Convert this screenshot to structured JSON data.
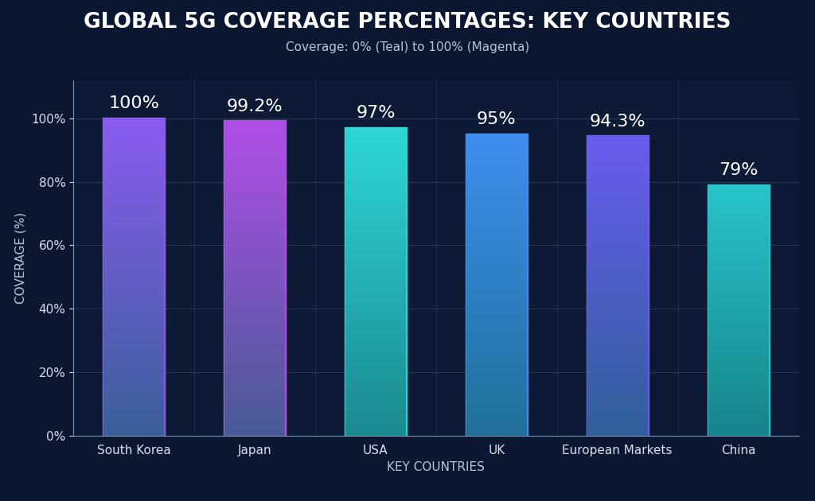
{
  "chart_data": {
    "type": "bar",
    "title": "GLOBAL 5G COVERAGE PERCENTAGES: KEY COUNTRIES",
    "subtitle": "Coverage: 0% (Teal) to 100% (Magenta)",
    "x_label": "KEY COUNTRIES",
    "y_label": "COVERAGE (%)",
    "categories": [
      "South Korea",
      "Japan",
      "USA",
      "UK",
      "European Markets",
      "China"
    ],
    "values": [
      100,
      99.2,
      97,
      95,
      94.3,
      79
    ],
    "value_labels": [
      "100%",
      "99.2%",
      "97%",
      "95%",
      "94.3%",
      "79%"
    ],
    "colors": [
      "#8a5cf0",
      "#b14fe8",
      "#2ed6d6",
      "#3f8ef0",
      "#6a5cf0",
      "#27c4c9"
    ],
    "ylim": [
      0,
      112
    ],
    "yticks": [
      {
        "value": 0,
        "label": "0%"
      },
      {
        "value": 20,
        "label": "20%"
      },
      {
        "value": 40,
        "label": "40%"
      },
      {
        "value": 60,
        "label": "60%"
      },
      {
        "value": 80,
        "label": "80%"
      },
      {
        "value": 100,
        "label": "100%"
      }
    ],
    "grid": true,
    "data_labels": true
  }
}
